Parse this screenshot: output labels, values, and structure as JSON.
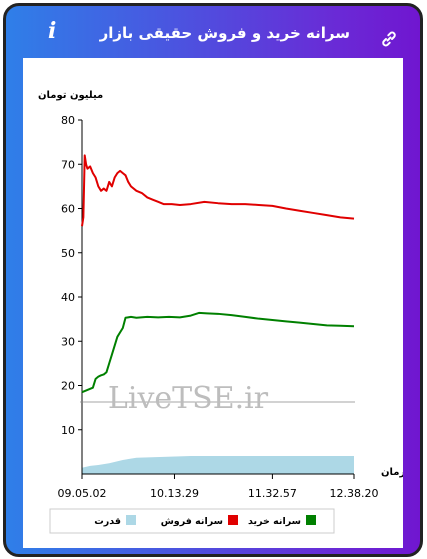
{
  "header": {
    "title": "سرانه خرید و فروش حقیقی بازار",
    "info_icon": "i",
    "link_icon": "link-icon"
  },
  "watermark": "LiveTSE.ir",
  "chart_data": {
    "type": "line",
    "ylabel": "میلیون تومان",
    "xlabel": "زمان",
    "ylim": [
      0,
      80
    ],
    "yticks": [
      "80",
      "70",
      "60",
      "50",
      "40",
      "30",
      "20",
      "10"
    ],
    "xticks": [
      "09.05.02",
      "10.13.29",
      "11.32.57",
      "12.38.20"
    ],
    "x_range": [
      0,
      1
    ],
    "x_positions": [
      0.0,
      0.34,
      0.7,
      1.0
    ],
    "grid": false,
    "legend_position": "bottom",
    "colors": {
      "sell": "#e00000",
      "buy": "#008000",
      "power": "#add8e6"
    },
    "series": [
      {
        "name": "سرانه فروش",
        "key": "sell",
        "x": [
          0.0,
          0.005,
          0.01,
          0.015,
          0.02,
          0.03,
          0.04,
          0.05,
          0.06,
          0.07,
          0.08,
          0.09,
          0.1,
          0.11,
          0.12,
          0.13,
          0.14,
          0.15,
          0.16,
          0.17,
          0.18,
          0.2,
          0.22,
          0.24,
          0.26,
          0.28,
          0.3,
          0.33,
          0.36,
          0.4,
          0.45,
          0.5,
          0.55,
          0.6,
          0.65,
          0.7,
          0.75,
          0.8,
          0.85,
          0.9,
          0.95,
          1.0
        ],
        "y": [
          56,
          58,
          72,
          70,
          69,
          69.5,
          68,
          67,
          65,
          64,
          64.5,
          64,
          66,
          65,
          67,
          68,
          68.5,
          68,
          67.5,
          66,
          65,
          64,
          63.5,
          62.5,
          62,
          61.5,
          61,
          61,
          60.8,
          61,
          61.5,
          61.2,
          61,
          61,
          60.8,
          60.6,
          60,
          59.5,
          59,
          58.5,
          58,
          57.7
        ]
      },
      {
        "name": "سرانه خرید",
        "key": "buy",
        "x": [
          0.0,
          0.02,
          0.04,
          0.05,
          0.06,
          0.07,
          0.08,
          0.09,
          0.1,
          0.11,
          0.12,
          0.13,
          0.14,
          0.15,
          0.16,
          0.18,
          0.2,
          0.24,
          0.28,
          0.32,
          0.36,
          0.4,
          0.43,
          0.46,
          0.5,
          0.55,
          0.6,
          0.65,
          0.7,
          0.75,
          0.8,
          0.85,
          0.9,
          0.95,
          1.0
        ],
        "y": [
          18.5,
          19,
          19.5,
          21.5,
          22,
          22.3,
          22.5,
          23,
          25,
          27,
          29,
          31,
          32,
          33,
          35.3,
          35.5,
          35.3,
          35.5,
          35.4,
          35.5,
          35.4,
          35.8,
          36.4,
          36.3,
          36.2,
          35.9,
          35.5,
          35.1,
          34.8,
          34.5,
          34.2,
          33.9,
          33.6,
          33.5,
          33.4
        ]
      }
    ],
    "power": {
      "name": "قدرت",
      "key": "power",
      "x": [
        0.0,
        0.03,
        0.06,
        0.1,
        0.15,
        0.2,
        0.3,
        0.4,
        0.5,
        0.6,
        0.7,
        0.8,
        0.9,
        1.0
      ],
      "level": [
        0.35,
        0.45,
        0.5,
        0.6,
        0.78,
        0.9,
        0.95,
        1.0,
        1.0,
        1.0,
        1.0,
        1.0,
        1.0,
        1.0
      ]
    }
  }
}
